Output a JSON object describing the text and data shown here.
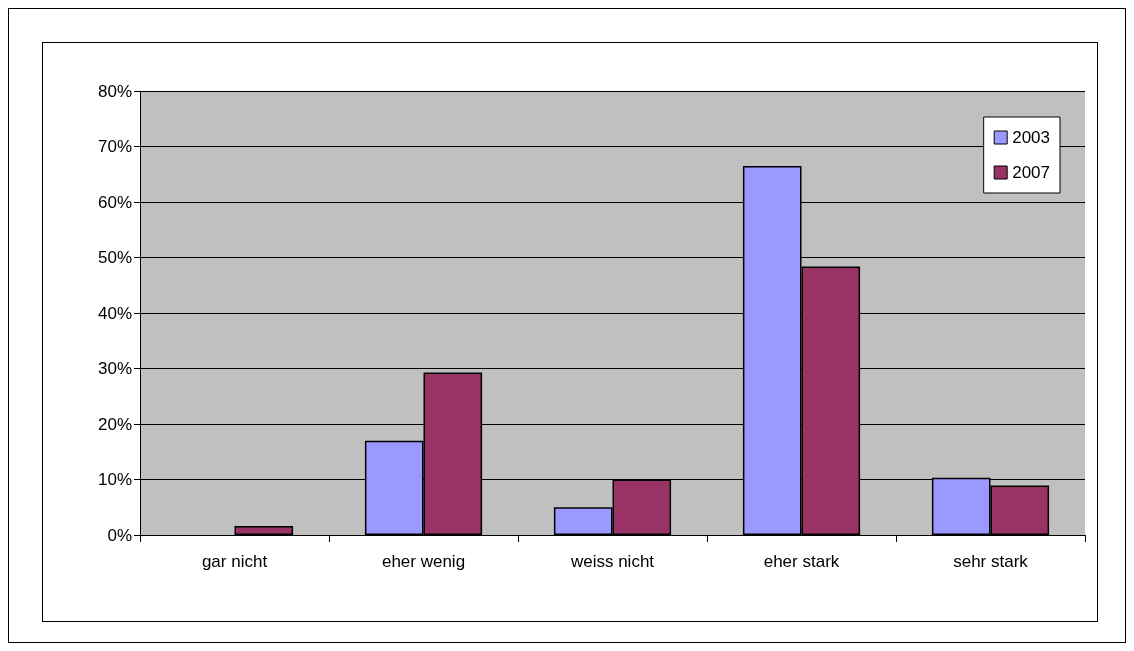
{
  "chart_data": {
    "type": "bar",
    "categories": [
      "gar nicht",
      "eher wenig",
      "weiss nicht",
      "eher stark",
      "sehr stark"
    ],
    "series": [
      {
        "name": "2003",
        "color": "#9999ff",
        "values": [
          0,
          17,
          5,
          66.5,
          10.3
        ]
      },
      {
        "name": "2007",
        "color": "#993366",
        "values": [
          1.6,
          29.3,
          10,
          48.4,
          8.9
        ]
      }
    ],
    "ylim": [
      0,
      80
    ],
    "yticks": [
      {
        "value": 0,
        "label": "0%"
      },
      {
        "value": 10,
        "label": "10%"
      },
      {
        "value": 20,
        "label": "20%"
      },
      {
        "value": 30,
        "label": "30%"
      },
      {
        "value": 40,
        "label": "40%"
      },
      {
        "value": 50,
        "label": "50%"
      },
      {
        "value": 60,
        "label": "60%"
      },
      {
        "value": 70,
        "label": "70%"
      },
      {
        "value": 80,
        "label": "80%"
      }
    ],
    "grid": "y",
    "legend": "top right"
  }
}
